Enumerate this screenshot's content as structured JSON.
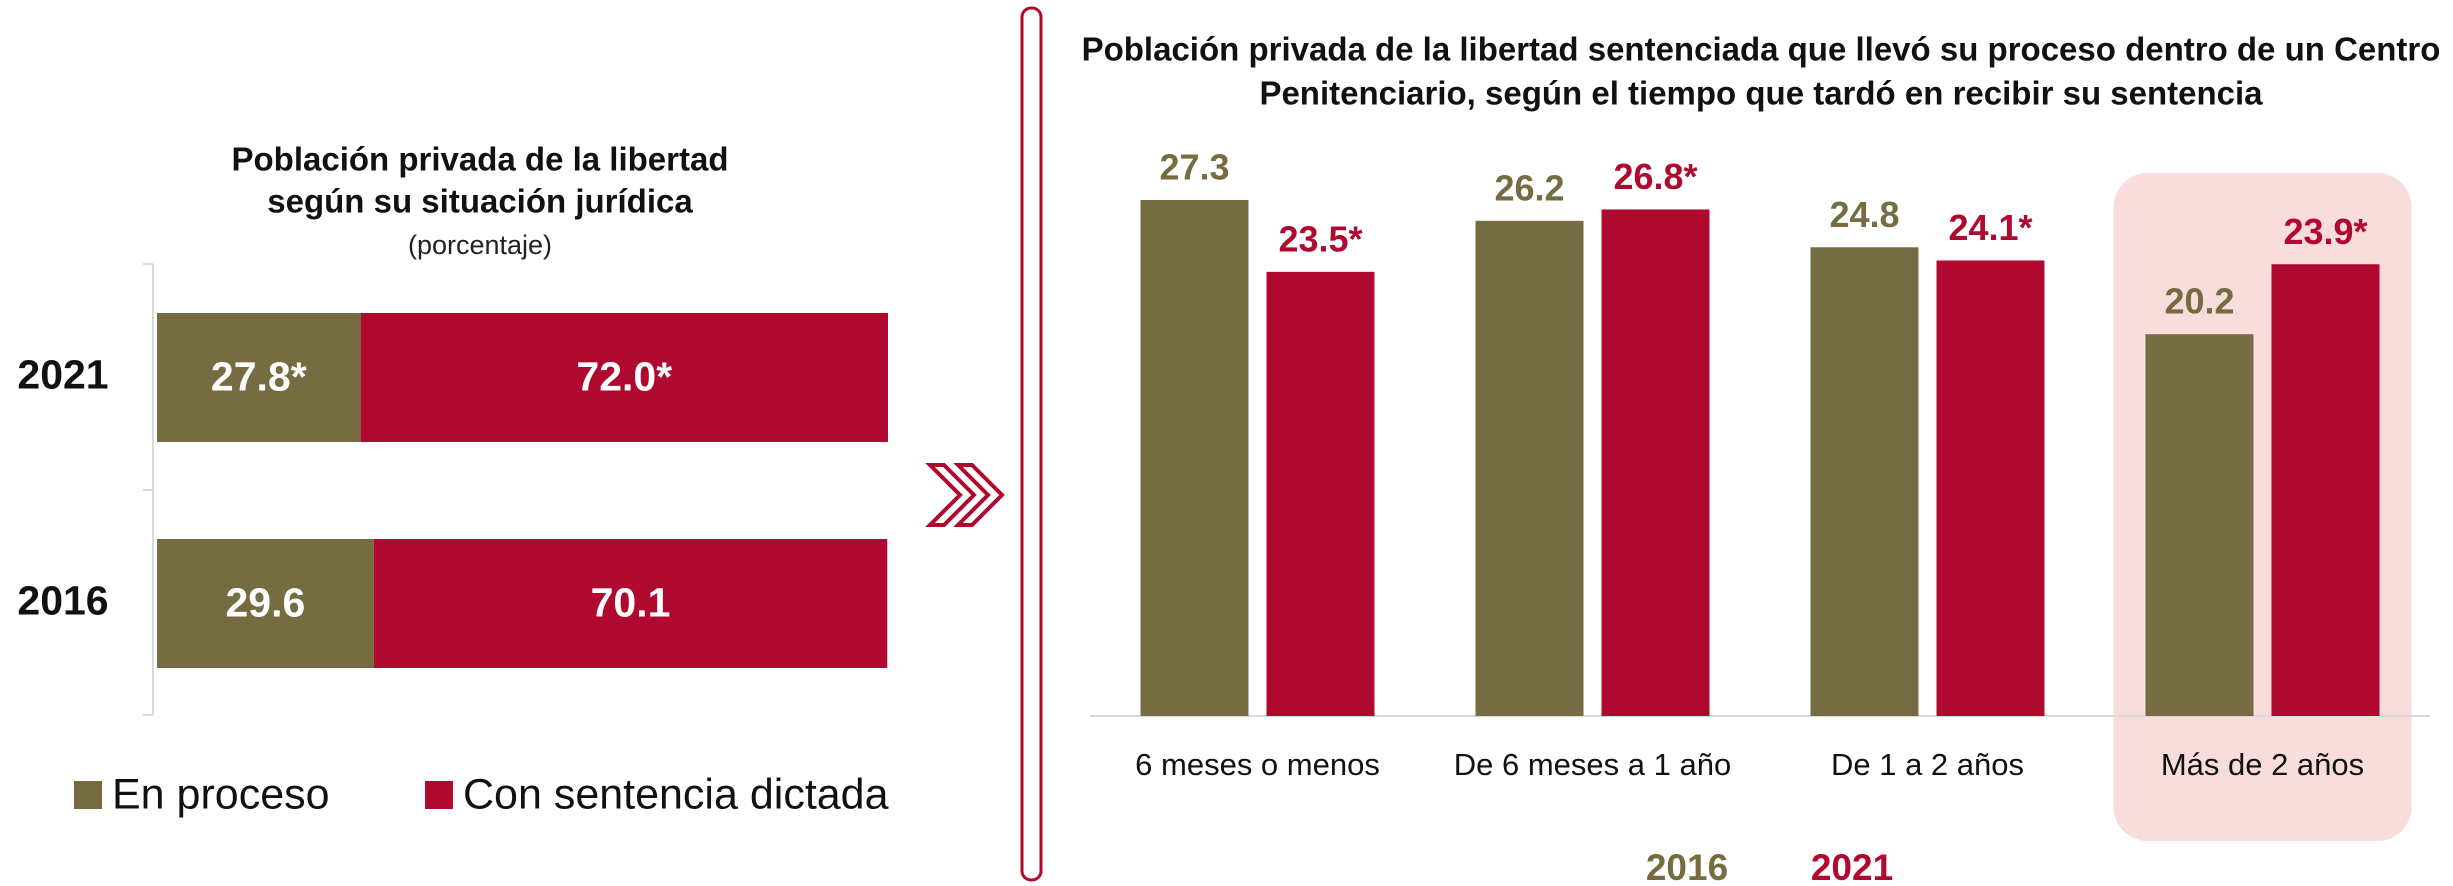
{
  "chart_data": [
    {
      "type": "hbar-stacked",
      "title": [
        "Población privada de la libertad",
        "según su situación jurídica"
      ],
      "subtitle": "(porcentaje)",
      "categories": [
        "2021",
        "2016"
      ],
      "series": [
        {
          "name": "En proceso",
          "color": "#766c41",
          "values": [
            27.8,
            29.6
          ],
          "value_labels": [
            "27.8*",
            "29.6"
          ]
        },
        {
          "name": "Con sentencia dictada",
          "color": "#b0092f",
          "values": [
            72.0,
            70.1
          ],
          "value_labels": [
            "72.0*",
            "70.1"
          ]
        }
      ]
    },
    {
      "type": "bar",
      "title": [
        "Población privada de la libertad sentenciada que llevó su proceso dentro de un Centro",
        "Penitenciario, según el tiempo que tardó en recibir su sentencia"
      ],
      "categories": [
        "6 meses o menos",
        "De 6 meses a 1 año",
        "De 1 a 2 años",
        "Más de 2 años"
      ],
      "highlight": 3,
      "series": [
        {
          "name": "2016",
          "color": "#766c41",
          "values": [
            27.3,
            26.2,
            24.8,
            20.2
          ]
        },
        {
          "name": "2021",
          "color": "#b0092f",
          "values": [
            23.5,
            26.8,
            24.1,
            23.9
          ],
          "value_labels": [
            "23.5*",
            "26.8*",
            "24.1*",
            "23.9*"
          ]
        }
      ]
    }
  ]
}
